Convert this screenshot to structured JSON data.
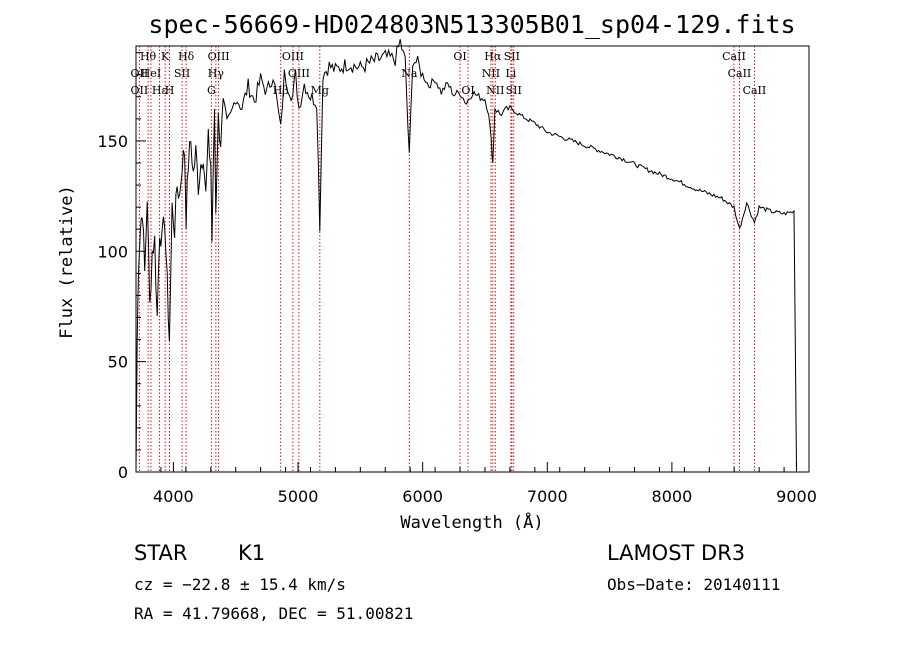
{
  "chart_data": {
    "type": "line",
    "title": "spec-56669-HD024803N513305B01_sp04-129.fits",
    "xlabel": "Wavelength (Å)",
    "ylabel": "Flux (relative)",
    "xlim": [
      3700,
      9100
    ],
    "ylim": [
      0,
      193
    ],
    "x_ticks": [
      4000,
      5000,
      6000,
      7000,
      8000,
      9000
    ],
    "y_ticks": [
      0,
      50,
      100,
      150
    ],
    "grid": false,
    "series": [
      {
        "name": "flux",
        "x": [
          3700,
          3710,
          3720,
          3735,
          3750,
          3770,
          3790,
          3810,
          3830,
          3850,
          3870,
          3890,
          3910,
          3930,
          3950,
          3968,
          3990,
          4010,
          4030,
          4050,
          4070,
          4090,
          4102,
          4120,
          4140,
          4160,
          4180,
          4200,
          4220,
          4240,
          4260,
          4280,
          4300,
          4310,
          4330,
          4340,
          4360,
          4380,
          4400,
          4430,
          4460,
          4500,
          4550,
          4600,
          4650,
          4700,
          4750,
          4800,
          4830,
          4861,
          4890,
          4920,
          4957,
          4980,
          5007,
          5050,
          5100,
          5150,
          5175,
          5200,
          5250,
          5300,
          5400,
          5500,
          5600,
          5700,
          5780,
          5820,
          5860,
          5893,
          5920,
          5960,
          6000,
          6050,
          6100,
          6150,
          6200,
          6250,
          6300,
          6350,
          6400,
          6450,
          6500,
          6530,
          6550,
          6563,
          6580,
          6620,
          6700,
          6800,
          6900,
          7000,
          7200,
          7400,
          7600,
          7800,
          8000,
          8200,
          8400,
          8498,
          8542,
          8600,
          8662,
          8700,
          8800,
          8900,
          8980,
          9000
        ],
        "values": [
          0,
          60,
          95,
          110,
          120,
          90,
          125,
          75,
          100,
          105,
          70,
          110,
          105,
          115,
          85,
          60,
          120,
          110,
          130,
          125,
          140,
          145,
          115,
          140,
          150,
          135,
          145,
          130,
          140,
          145,
          125,
          150,
          140,
          105,
          165,
          120,
          160,
          150,
          165,
          155,
          160,
          170,
          165,
          175,
          168,
          178,
          172,
          180,
          168,
          155,
          180,
          175,
          170,
          180,
          165,
          176,
          170,
          168,
          112,
          180,
          184,
          182,
          185,
          183,
          186,
          188,
          187,
          195,
          186,
          142,
          187,
          185,
          180,
          175,
          178,
          172,
          176,
          171,
          172,
          167,
          172,
          170,
          169,
          163,
          150,
          140,
          165,
          162,
          165,
          161,
          158,
          154,
          150,
          146,
          142,
          137,
          133,
          128,
          124,
          120,
          110,
          122,
          113,
          120,
          118,
          117,
          118,
          0
        ]
      }
    ],
    "line_markers": [
      {
        "label": "Hθ",
        "x": 3797,
        "row": 0
      },
      {
        "label": "OII",
        "x": 3727,
        "row": 1
      },
      {
        "label": "OII",
        "x": 3727,
        "row": 2
      },
      {
        "label": "Hε",
        "x": 3889,
        "row": 2
      },
      {
        "label": "HeI",
        "x": 3820,
        "row": 1
      },
      {
        "label": "K",
        "x": 3934,
        "row": 0
      },
      {
        "label": "H",
        "x": 3969,
        "row": 2
      },
      {
        "label": "Hδ",
        "x": 4102,
        "row": 0
      },
      {
        "label": "SII",
        "x": 4070,
        "row": 1
      },
      {
        "label": "OIII",
        "x": 4363,
        "row": 0
      },
      {
        "label": "Hγ",
        "x": 4341,
        "row": 1
      },
      {
        "label": "G",
        "x": 4305,
        "row": 2
      },
      {
        "label": "OIII",
        "x": 4959,
        "row": 0
      },
      {
        "label": "OIII",
        "x": 5007,
        "row": 1
      },
      {
        "label": "Hβ",
        "x": 4861,
        "row": 2
      },
      {
        "label": "Mg",
        "x": 5175,
        "row": 2
      },
      {
        "label": "Na",
        "x": 5893,
        "row": 1
      },
      {
        "label": "OI",
        "x": 6300,
        "row": 0
      },
      {
        "label": "OI",
        "x": 6364,
        "row": 2
      },
      {
        "label": "Hα",
        "x": 6563,
        "row": 0
      },
      {
        "label": "SII",
        "x": 6716,
        "row": 0
      },
      {
        "label": "NII",
        "x": 6548,
        "row": 1
      },
      {
        "label": "Li",
        "x": 6708,
        "row": 1
      },
      {
        "label": "NII",
        "x": 6583,
        "row": 2
      },
      {
        "label": "SII",
        "x": 6731,
        "row": 2
      },
      {
        "label": "CaII",
        "x": 8498,
        "row": 0
      },
      {
        "label": "CaII",
        "x": 8542,
        "row": 1
      },
      {
        "label": "CaII",
        "x": 8662,
        "row": 2
      }
    ]
  },
  "info": {
    "class_label": "STAR",
    "subclass": "K1",
    "survey": "LAMOST DR3",
    "cz": "cz = −22.8 ± 15.4 km/s",
    "obs_date": "Obs−Date: 20140111",
    "coords": "RA =  41.79668, DEC =  51.00821"
  },
  "colors": {
    "line_marker": "#cc0000",
    "spectrum": "#000000",
    "background": "#ffffff"
  }
}
